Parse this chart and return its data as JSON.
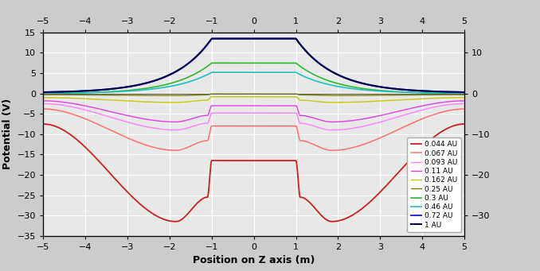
{
  "xlabel": "Position on Z axis (m)",
  "ylabel": "Potential (V)",
  "xlim": [
    -5,
    5
  ],
  "ylim": [
    -35,
    15
  ],
  "xticks": [
    -5,
    -4,
    -3,
    -2,
    -1,
    0,
    1,
    2,
    3,
    4,
    5
  ],
  "yticks_left": [
    -35,
    -30,
    -25,
    -20,
    -15,
    -10,
    -5,
    0,
    5,
    10,
    15
  ],
  "yticks_right": [
    -30,
    -20,
    -10,
    0,
    10
  ],
  "bg_fig": "#cccccc",
  "bg_ax": "#e8e8e8",
  "grid_color": "#ffffff",
  "series": [
    {
      "label": "0.044 AU",
      "color": "#cc2020",
      "lw": 1.3,
      "flat_c": -16.5,
      "dip_v": -31.5,
      "outer_v": -7.5,
      "type": "neg"
    },
    {
      "label": "0.067 AU",
      "color": "#ff7070",
      "lw": 1.1,
      "flat_c": -8.0,
      "dip_v": -14.0,
      "outer_v": -3.8,
      "type": "neg"
    },
    {
      "label": "0.093 AU",
      "color": "#ff80ff",
      "lw": 1.0,
      "flat_c": -4.8,
      "dip_v": -9.0,
      "outer_v": -2.5,
      "type": "neg"
    },
    {
      "label": "0.11 AU",
      "color": "#e040e0",
      "lw": 1.0,
      "flat_c": -3.0,
      "dip_v": -7.0,
      "outer_v": -1.8,
      "type": "neg"
    },
    {
      "label": "0.162 AU",
      "color": "#c8c800",
      "lw": 1.0,
      "flat_c": -0.8,
      "dip_v": -2.2,
      "outer_v": -1.0,
      "type": "neg"
    },
    {
      "label": "0.25 AU",
      "color": "#808000",
      "lw": 1.0,
      "flat_c": -0.1,
      "dip_v": -0.5,
      "outer_v": -0.3,
      "type": "neg"
    },
    {
      "label": "0.3 AU",
      "color": "#30b830",
      "lw": 1.2,
      "flat_c": 7.5,
      "dip_v": 7.5,
      "outer_v": -0.1,
      "type": "pos"
    },
    {
      "label": "0.46 AU",
      "color": "#20c0c0",
      "lw": 1.2,
      "flat_c": 5.2,
      "dip_v": 5.2,
      "outer_v": 0.0,
      "type": "pos"
    },
    {
      "label": "0.72 AU",
      "color": "#3030dd",
      "lw": 1.5,
      "flat_c": 13.5,
      "dip_v": 13.5,
      "outer_v": 0.15,
      "type": "pos"
    },
    {
      "label": "1 AU",
      "color": "#00004a",
      "lw": 1.5,
      "flat_c": 13.5,
      "dip_v": 13.5,
      "outer_v": 0.15,
      "type": "pos"
    }
  ]
}
